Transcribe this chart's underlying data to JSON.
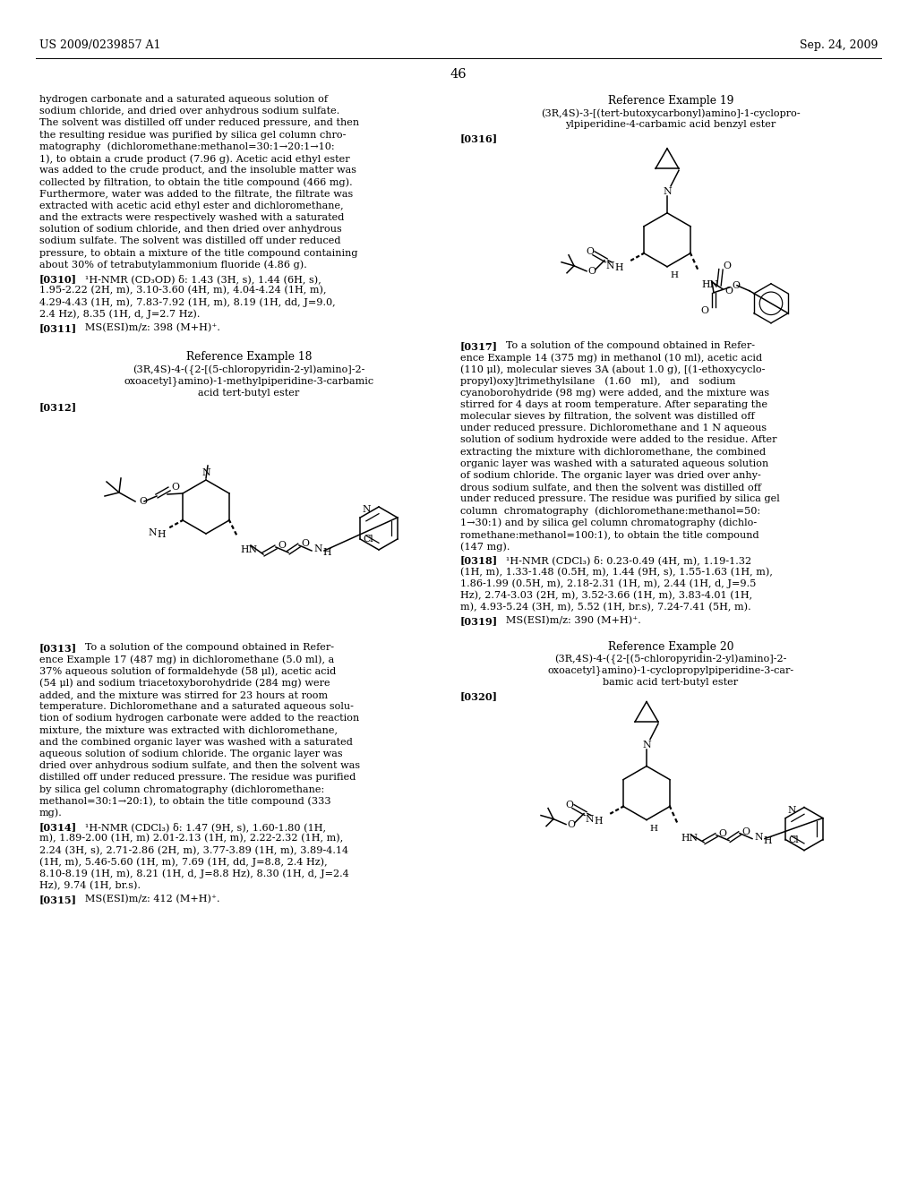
{
  "bg": "#ffffff",
  "header_left": "US 2009/0239857 A1",
  "header_right": "Sep. 24, 2009",
  "page_num": "46",
  "left_para_top": [
    "hydrogen carbonate and a saturated aqueous solution of",
    "sodium chloride, and dried over anhydrous sodium sulfate.",
    "The solvent was distilled off under reduced pressure, and then",
    "the resulting residue was purified by silica gel column chro-",
    "matography  (dichloromethane:methanol=30:1→20:1→10:",
    "1), to obtain a crude product (7.96 g). Acetic acid ethyl ester",
    "was added to the crude product, and the insoluble matter was",
    "collected by filtration, to obtain the title compound (466 mg).",
    "Furthermore, water was added to the filtrate, the filtrate was",
    "extracted with acetic acid ethyl ester and dichloromethane,",
    "and the extracts were respectively washed with a saturated",
    "solution of sodium chloride, and then dried over anhydrous",
    "sodium sulfate. The solvent was distilled off under reduced",
    "pressure, to obtain a mixture of the title compound containing",
    "about 30% of tetrabutylammonium fluoride (4.86 g)."
  ],
  "nmr310_tag": "[0310]",
  "nmr310_a": "   ¹H-NMR (CD₃OD) δ: 1.43 (3H, s), 1.44 (6H, s),",
  "nmr310_b": "1.95-2.22 (2H, m), 3.10-3.60 (4H, m), 4.04-4.24 (1H, m),",
  "nmr310_c": "4.29-4.43 (1H, m), 7.83-7.92 (1H, m), 8.19 (1H, dd, J=9.0,",
  "nmr310_d": "2.4 Hz), 8.35 (1H, d, J=2.7 Hz).",
  "ms311_tag": "[0311]",
  "ms311": "   MS(ESI)m/z: 398 (M+H)⁺.",
  "ref18_title": "Reference Example 18",
  "ref18_cmpd1": "(3R,4S)-4-({2-[(5-chloropyridin-2-yl)amino]-2-",
  "ref18_cmpd2": "oxoacetyl}amino)-1-methylpiperidine-3-carbamic",
  "ref18_cmpd3": "acid tert-butyl ester",
  "tag312": "[0312]",
  "para313_tag": "[0313]",
  "para313": [
    "   To a solution of the compound obtained in Refer-",
    "ence Example 17 (487 mg) in dichloromethane (5.0 ml), a",
    "37% aqueous solution of formaldehyde (58 μl), acetic acid",
    "(54 μl) and sodium triacetoxyborohydride (284 mg) were",
    "added, and the mixture was stirred for 23 hours at room",
    "temperature. Dichloromethane and a saturated aqueous solu-",
    "tion of sodium hydrogen carbonate were added to the reaction",
    "mixture, the mixture was extracted with dichloromethane,",
    "and the combined organic layer was washed with a saturated",
    "aqueous solution of sodium chloride. The organic layer was",
    "dried over anhydrous sodium sulfate, and then the solvent was",
    "distilled off under reduced pressure. The residue was purified",
    "by silica gel column chromatography (dichloromethane:",
    "methanol=30:1→20:1), to obtain the title compound (333",
    "mg)."
  ],
  "nmr314_tag": "[0314]",
  "nmr314_a": "   ¹H-NMR (CDCl₃) δ: 1.47 (9H, s), 1.60-1.80 (1H,",
  "nmr314_b": "m), 1.89-2.00 (1H, m) 2.01-2.13 (1H, m), 2.22-2.32 (1H, m),",
  "nmr314_c": "2.24 (3H, s), 2.71-2.86 (2H, m), 3.77-3.89 (1H, m), 3.89-4.14",
  "nmr314_d": "(1H, m), 5.46-5.60 (1H, m), 7.69 (1H, dd, J=8.8, 2.4 Hz),",
  "nmr314_e": "8.10-8.19 (1H, m), 8.21 (1H, d, J=8.8 Hz), 8.30 (1H, d, J=2.4",
  "nmr314_f": "Hz), 9.74 (1H, br.s).",
  "ms315_tag": "[0315]",
  "ms315": "   MS(ESI)m/z: 412 (M+H)⁺.",
  "ref19_title": "Reference Example 19",
  "ref19_cmpd1": "(3R,4S)-3-[(tert-butoxycarbonyl)amino]-1-cyclopro-",
  "ref19_cmpd2": "ylpiperidine-4-carbamic acid benzyl ester",
  "tag316": "[0316]",
  "para317_tag": "[0317]",
  "para317": [
    "   To a solution of the compound obtained in Refer-",
    "ence Example 14 (375 mg) in methanol (10 ml), acetic acid",
    "(110 μl), molecular sieves 3A (about 1.0 g), [(1-ethoxycyclo-",
    "propyl)oxy]trimethylsilane   (1.60   ml),   and   sodium",
    "cyanoborohydride (98 mg) were added, and the mixture was",
    "stirred for 4 days at room temperature. After separating the",
    "molecular sieves by filtration, the solvent was distilled off",
    "under reduced pressure. Dichloromethane and 1 N aqueous",
    "solution of sodium hydroxide were added to the residue. After",
    "extracting the mixture with dichloromethane, the combined",
    "organic layer was washed with a saturated aqueous solution",
    "of sodium chloride. The organic layer was dried over anhy-",
    "drous sodium sulfate, and then the solvent was distilled off",
    "under reduced pressure. The residue was purified by silica gel",
    "column  chromatography  (dichloromethane:methanol=50:",
    "1→30:1) and by silica gel column chromatography (dichlo-",
    "romethane:methanol=100:1), to obtain the title compound",
    "(147 mg)."
  ],
  "nmr318_tag": "[0318]",
  "nmr318_a": "   ¹H-NMR (CDCl₃) δ: 0.23-0.49 (4H, m), 1.19-1.32",
  "nmr318_b": "(1H, m), 1.33-1.48 (0.5H, m), 1.44 (9H, s), 1.55-1.63 (1H, m),",
  "nmr318_c": "1.86-1.99 (0.5H, m), 2.18-2.31 (1H, m), 2.44 (1H, d, J=9.5",
  "nmr318_d": "Hz), 2.74-3.03 (2H, m), 3.52-3.66 (1H, m), 3.83-4.01 (1H,",
  "nmr318_e": "m), 4.93-5.24 (3H, m), 5.52 (1H, br.s), 7.24-7.41 (5H, m).",
  "ms319_tag": "[0319]",
  "ms319": "   MS(ESI)m/z: 390 (M+H)⁺.",
  "ref20_title": "Reference Example 20",
  "ref20_cmpd1": "(3R,4S)-4-({2-[(5-chloropyridin-2-yl)amino]-2-",
  "ref20_cmpd2": "oxoacetyl}amino)-1-cyclopropylpiperidine-3-car-",
  "ref20_cmpd3": "bamic acid tert-butyl ester",
  "tag320": "[0320]"
}
